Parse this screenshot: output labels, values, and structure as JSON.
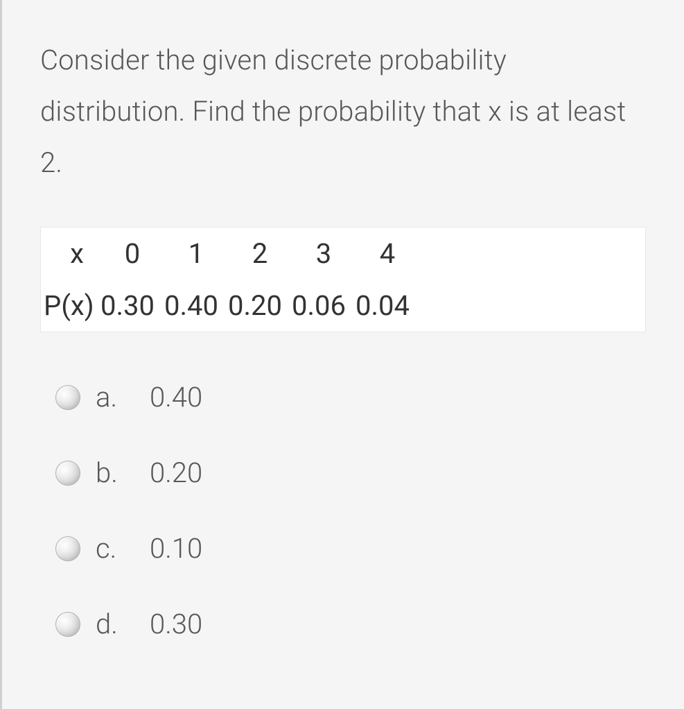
{
  "question": {
    "text": "Consider the given discrete probability distribution. Find the probability that x is at least 2."
  },
  "table": {
    "row_label_x": "x",
    "row_label_px": "P(x)",
    "columns": [
      "0",
      "1",
      "2",
      "3",
      "4"
    ],
    "values": [
      "0.30",
      "0.40",
      "0.20",
      "0.06",
      "0.04"
    ]
  },
  "options": [
    {
      "letter": "a.",
      "value": "0.40"
    },
    {
      "letter": "b.",
      "value": "0.20"
    },
    {
      "letter": "c.",
      "value": "0.10"
    },
    {
      "letter": "d.",
      "value": "0.30"
    }
  ],
  "colors": {
    "background": "#f5f5f5",
    "border_left": "#d0d0d0",
    "text_primary": "#575757",
    "text_table": "#333333",
    "table_bg": "#ffffff",
    "table_border": "#e8e8e8"
  },
  "typography": {
    "body_fontsize": 40,
    "body_weight": 300,
    "line_height": 1.85
  }
}
